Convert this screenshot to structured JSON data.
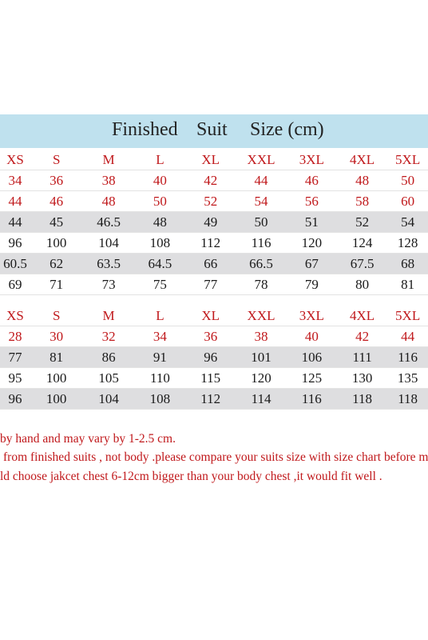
{
  "banner": {
    "w1": "Finished",
    "w2": "Suit",
    "w3": "Size (cm)"
  },
  "table1": {
    "rows": [
      {
        "style": "red",
        "cells": [
          "XS",
          "S",
          "M",
          "L",
          "XL",
          "XXL",
          "3XL",
          "4XL",
          "5XL"
        ]
      },
      {
        "style": "red",
        "cells": [
          "34",
          "36",
          "38",
          "40",
          "42",
          "44",
          "46",
          "48",
          "50"
        ]
      },
      {
        "style": "red",
        "cells": [
          "44",
          "46",
          "48",
          "50",
          "52",
          "54",
          "56",
          "58",
          "60"
        ]
      },
      {
        "style": "gray",
        "cells": [
          "44",
          "45",
          "46.5",
          "48",
          "49",
          "50",
          "51",
          "52",
          "54"
        ]
      },
      {
        "style": "plain",
        "cells": [
          "96",
          "100",
          "104",
          "108",
          "112",
          "116",
          "120",
          "124",
          "128"
        ]
      },
      {
        "style": "gray",
        "cells": [
          "60.5",
          "62",
          "63.5",
          "64.5",
          "66",
          "66.5",
          "67",
          "67.5",
          "68"
        ]
      },
      {
        "style": "plain",
        "cells": [
          "69",
          "71",
          "73",
          "75",
          "77",
          "78",
          "79",
          "80",
          "81"
        ]
      }
    ]
  },
  "table2": {
    "rows": [
      {
        "style": "red",
        "cells": [
          "XS",
          "S",
          "M",
          "L",
          "XL",
          "XXL",
          "3XL",
          "4XL",
          "5XL"
        ]
      },
      {
        "style": "red",
        "cells": [
          "28",
          "30",
          "32",
          "34",
          "36",
          "38",
          "40",
          "42",
          "44"
        ]
      },
      {
        "style": "gray",
        "cells": [
          "77",
          "81",
          "86",
          "91",
          "96",
          "101",
          "106",
          "111",
          "116"
        ]
      },
      {
        "style": "plain",
        "cells": [
          "95",
          "100",
          "105",
          "110",
          "115",
          "120",
          "125",
          "130",
          "135"
        ]
      },
      {
        "style": "gray",
        "cells": [
          "96",
          "100",
          "104",
          "108",
          "112",
          "114",
          "116",
          "118",
          "118"
        ]
      }
    ]
  },
  "notes": [
    "by hand and may vary by 1-2.5 cm.",
    "from finished suits , not body .please compare your suits size with size chart before making y",
    "ld choose jakcet chest 6-12cm bigger than your body chest ,it would fit well ."
  ]
}
